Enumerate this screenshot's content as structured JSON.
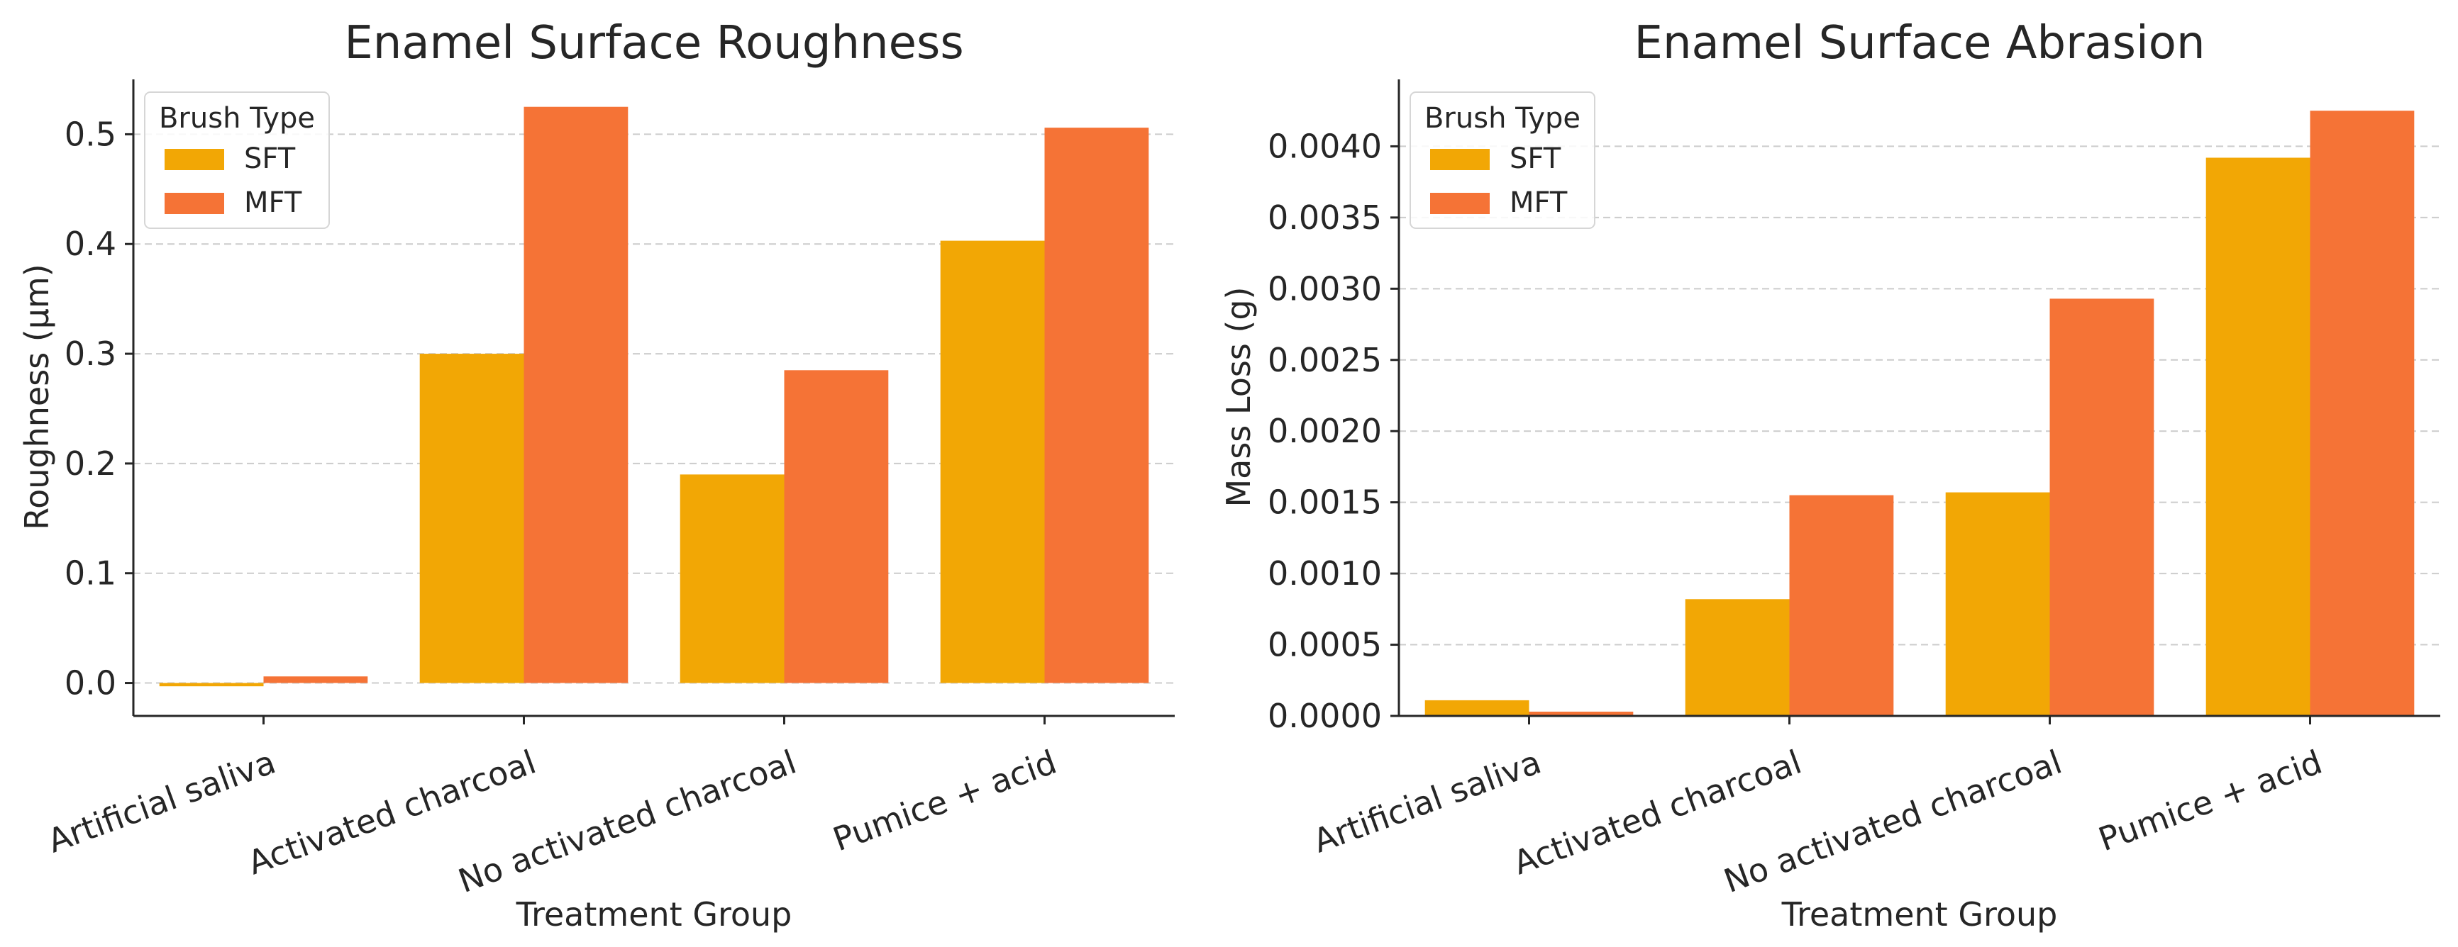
{
  "chart_data": [
    {
      "type": "bar",
      "title": "Enamel Surface Roughness",
      "xlabel": "Treatment Group",
      "ylabel": "Roughness (µm)",
      "categories": [
        "Artificial saliva",
        "Activated charcoal",
        "No activated charcoal",
        "Pumice + acid"
      ],
      "series": [
        {
          "name": "SFT",
          "values": [
            -0.003,
            0.3,
            0.19,
            0.403
          ]
        },
        {
          "name": "MFT",
          "values": [
            0.006,
            0.525,
            0.285,
            0.506
          ]
        }
      ],
      "ylim": [
        -0.03,
        0.55
      ],
      "yticks": [
        0.0,
        0.1,
        0.2,
        0.3,
        0.4,
        0.5
      ],
      "ytick_labels": [
        "0.0",
        "0.1",
        "0.2",
        "0.3",
        "0.4",
        "0.5"
      ],
      "legend_title": "Brush Type",
      "legend_position": "top-left",
      "grid": "y-dashed"
    },
    {
      "type": "bar",
      "title": "Enamel Surface Abrasion",
      "xlabel": "Treatment Group",
      "ylabel": "Mass Loss (g)",
      "categories": [
        "Artificial saliva",
        "Activated charcoal",
        "No activated charcoal",
        "Pumice + acid"
      ],
      "series": [
        {
          "name": "SFT",
          "values": [
            0.00011,
            0.00082,
            0.00157,
            0.00392
          ]
        },
        {
          "name": "MFT",
          "values": [
            3e-05,
            0.00155,
            0.00293,
            0.00425
          ]
        }
      ],
      "ylim": [
        0.0,
        0.00447
      ],
      "yticks": [
        0.0,
        0.0005,
        0.001,
        0.0015,
        0.002,
        0.0025,
        0.003,
        0.0035,
        0.004
      ],
      "ytick_labels": [
        "0.0000",
        "0.0005",
        "0.0010",
        "0.0015",
        "0.0020",
        "0.0025",
        "0.0030",
        "0.0035",
        "0.0040"
      ],
      "legend_title": "Brush Type",
      "legend_position": "top-left",
      "grid": "y-dashed"
    }
  ],
  "colors": {
    "SFT": "#F2A705",
    "MFT": "#F57336",
    "grid": "#cccccc",
    "axis": "#262626"
  }
}
